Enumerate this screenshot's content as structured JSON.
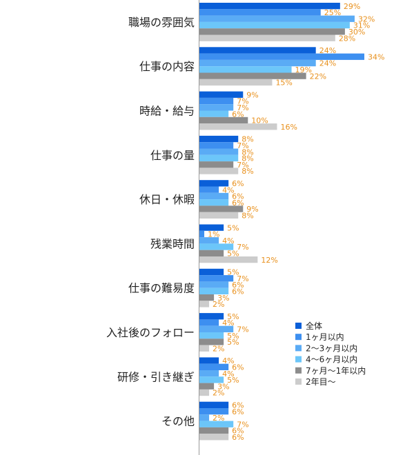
{
  "chart_data": {
    "type": "bar",
    "orientation": "horizontal",
    "categories": [
      "職場の雰囲気",
      "仕事の内容",
      "時給・給与",
      "仕事の量",
      "休日・休暇",
      "残業時間",
      "仕事の難易度",
      "入社後のフォロー",
      "研修・引き継ぎ",
      "その他"
    ],
    "series": [
      {
        "name": "全体",
        "color": "#0a5fd8",
        "values": [
          29,
          24,
          9,
          8,
          6,
          5,
          5,
          5,
          4,
          6
        ]
      },
      {
        "name": "1ヶ月以内",
        "color": "#3d8ff0",
        "values": [
          25,
          34,
          7,
          7,
          4,
          1,
          7,
          4,
          6,
          6
        ]
      },
      {
        "name": "2～3ヶ月以内",
        "color": "#5aabf5",
        "values": [
          32,
          24,
          7,
          8,
          6,
          4,
          6,
          7,
          4,
          2
        ]
      },
      {
        "name": "4～6ヶ月以内",
        "color": "#6cc6f9",
        "values": [
          31,
          19,
          6,
          8,
          6,
          7,
          6,
          5,
          5,
          7
        ]
      },
      {
        "name": "7ヶ月～1年以内",
        "color": "#8c8c8c",
        "values": [
          30,
          22,
          10,
          7,
          9,
          5,
          3,
          5,
          3,
          6
        ]
      },
      {
        "name": "2年目～",
        "color": "#cccccc",
        "values": [
          28,
          15,
          16,
          8,
          8,
          12,
          2,
          2,
          2,
          6
        ]
      }
    ],
    "value_suffix": "%",
    "xlim": [
      0,
      34
    ],
    "grid": false,
    "legend_position": "right"
  }
}
